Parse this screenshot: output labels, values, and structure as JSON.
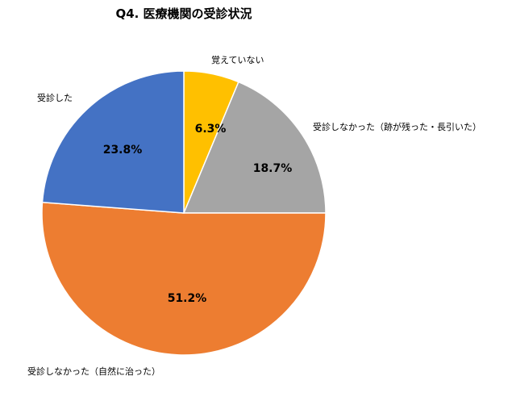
{
  "chart_data": {
    "type": "pie",
    "title": "Q4. 医療機関の受診状況",
    "slices": [
      {
        "label": "覚えていない",
        "value": 6.3,
        "display": "6.3%",
        "color": "#FFC000"
      },
      {
        "label": "受診しなかった（跡が残った・長引いた）",
        "value": 18.7,
        "display": "18.7%",
        "color": "#A5A5A5"
      },
      {
        "label": "受診しなかった（自然に治った）",
        "value": 51.2,
        "display": "51.2%",
        "color": "#ED7D31"
      },
      {
        "label": "受診した",
        "value": 23.8,
        "display": "23.8%",
        "color": "#4472C4"
      }
    ],
    "start": "12 o'clock",
    "direction": "clockwise",
    "legend": "none"
  }
}
